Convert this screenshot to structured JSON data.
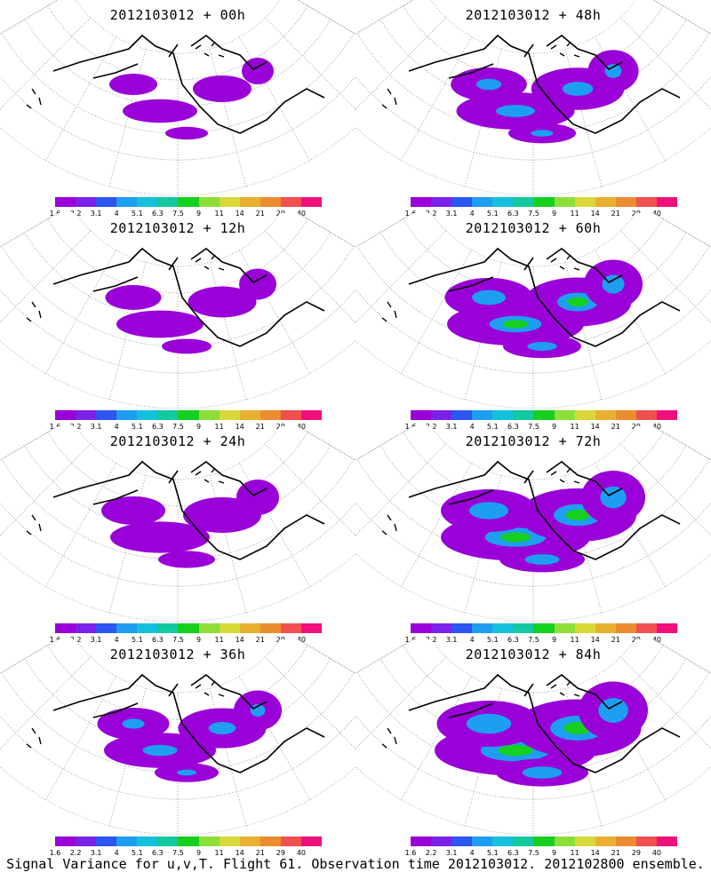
{
  "panels": [
    {
      "title": "2012103012 + 00h",
      "fill_level": 0.1
    },
    {
      "title": "2012103012 + 48h",
      "fill_level": 0.45
    },
    {
      "title": "2012103012 + 12h",
      "fill_level": 0.2
    },
    {
      "title": "2012103012 + 60h",
      "fill_level": 0.6
    },
    {
      "title": "2012103012 + 24h",
      "fill_level": 0.3
    },
    {
      "title": "2012103012 + 72h",
      "fill_level": 0.7
    },
    {
      "title": "2012103012 + 36h",
      "fill_level": 0.4
    },
    {
      "title": "2012103012 + 84h",
      "fill_level": 0.8
    }
  ],
  "colorbar": {
    "labels": [
      "1.6",
      "2.2",
      "3.1",
      "4",
      "5.1",
      "6.3",
      "7.5",
      "9",
      "11",
      "14",
      "21",
      "29",
      "40"
    ],
    "colors": [
      "#9a00d8",
      "#7a22e8",
      "#2b56f0",
      "#1e9ef0",
      "#16c0dc",
      "#14c8a0",
      "#16d020",
      "#8ede3a",
      "#d8d83a",
      "#e8b030",
      "#ec8c30",
      "#f05050",
      "#f0107c"
    ]
  },
  "footer": "Signal Variance for u,v,T. Flight 61. Observation time 2012103012. 2012102800 ensemble."
}
